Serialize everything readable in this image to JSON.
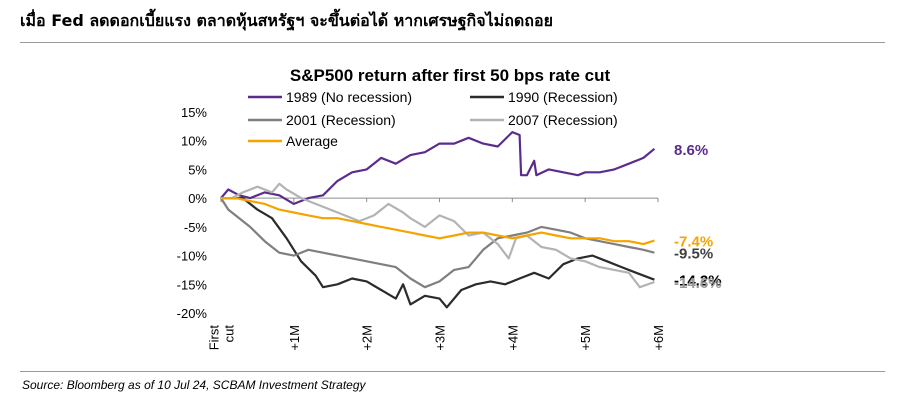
{
  "header": {
    "title": "เมื่อ Fed ลดดอกเบี้ยแรง ตลาดหุ้นสหรัฐฯ จะขึ้นต่อได้ หากเศรษฐกิจไม่ถดถอย"
  },
  "footer": {
    "source": "Source: Bloomberg as of 10 Jul 24, SCBAM Investment Strategy"
  },
  "chart_data": {
    "type": "line",
    "title": "S&P500 return after first 50 bps rate cut",
    "xlabel": "",
    "ylabel": "",
    "x_tick_labels": [
      "First cut",
      "+1M",
      "+2M",
      "+3M",
      "+4M",
      "+5M",
      "+6M"
    ],
    "x_ticks_months": [
      0,
      1,
      2,
      3,
      4,
      5,
      6
    ],
    "xlim_months": [
      0,
      6
    ],
    "ylim_percent": [
      -20,
      15
    ],
    "y_ticks_percent": [
      -20,
      -15,
      -10,
      -5,
      0,
      5,
      10,
      15
    ],
    "y_tick_labels": [
      "-20%",
      "-15%",
      "-10%",
      "-5%",
      "0%",
      "5%",
      "10%",
      "15%"
    ],
    "grid": false,
    "legend_position": "top",
    "series": [
      {
        "name": "1989 (No recession)",
        "color": "#5b2c8c",
        "label_color": "#5b2c8c",
        "end_label": "8.6%",
        "months": [
          0,
          0.1,
          0.25,
          0.4,
          0.6,
          0.8,
          1.0,
          1.2,
          1.4,
          1.6,
          1.8,
          2.0,
          2.2,
          2.4,
          2.6,
          2.8,
          3.0,
          3.2,
          3.4,
          3.6,
          3.8,
          4.0,
          4.1,
          4.12,
          4.2,
          4.3,
          4.33,
          4.5,
          4.7,
          4.9,
          5.0,
          5.2,
          5.4,
          5.6,
          5.8,
          5.95
        ],
        "values": [
          0,
          1.5,
          0.5,
          0,
          1.0,
          0.5,
          -1.0,
          0,
          0.5,
          3.0,
          4.5,
          5.0,
          7.0,
          6.0,
          7.5,
          8.0,
          9.5,
          9.5,
          10.5,
          9.5,
          9.0,
          11.5,
          11.0,
          4.0,
          4.0,
          6.5,
          4.0,
          5.0,
          4.5,
          4.0,
          4.5,
          4.5,
          5.0,
          6.0,
          7.0,
          8.6
        ]
      },
      {
        "name": "1990 (Recession)",
        "color": "#2b2b2b",
        "label_color": "#000000",
        "end_label": "-14.2%",
        "months": [
          0,
          0.15,
          0.3,
          0.5,
          0.7,
          0.9,
          1.1,
          1.3,
          1.4,
          1.6,
          1.8,
          2.0,
          2.2,
          2.4,
          2.5,
          2.6,
          2.8,
          3.0,
          3.1,
          3.3,
          3.5,
          3.7,
          3.9,
          4.1,
          4.3,
          4.5,
          4.7,
          4.9,
          5.1,
          5.3,
          5.5,
          5.7,
          5.95
        ],
        "values": [
          0,
          0,
          0,
          -2.0,
          -3.5,
          -7.0,
          -11.0,
          -13.5,
          -15.5,
          -15.0,
          -14.0,
          -14.5,
          -16.0,
          -17.5,
          -15.0,
          -18.5,
          -17.0,
          -17.5,
          -19.0,
          -16.0,
          -15.0,
          -14.5,
          -15.0,
          -14.0,
          -13.0,
          -14.0,
          -11.5,
          -10.5,
          -10.0,
          -11.0,
          -12.0,
          -13.0,
          -14.2
        ]
      },
      {
        "name": "2001 (Recession)",
        "color": "#7f7f7f",
        "label_color": "#404040",
        "end_label": "-9.5%",
        "months": [
          0,
          0.1,
          0.2,
          0.4,
          0.6,
          0.8,
          1.0,
          1.2,
          1.4,
          1.6,
          1.8,
          2.0,
          2.2,
          2.4,
          2.6,
          2.8,
          3.0,
          3.2,
          3.4,
          3.6,
          3.8,
          4.0,
          4.2,
          4.4,
          4.6,
          4.8,
          5.0,
          5.2,
          5.4,
          5.6,
          5.8,
          5.95
        ],
        "values": [
          0,
          -2.0,
          -3.0,
          -5.0,
          -7.5,
          -9.5,
          -10.0,
          -9.0,
          -9.5,
          -10.0,
          -10.5,
          -11.0,
          -11.5,
          -12.0,
          -14.0,
          -15.5,
          -14.5,
          -12.5,
          -12.0,
          -9.0,
          -7.0,
          -6.5,
          -6.0,
          -5.0,
          -5.5,
          -6.0,
          -7.0,
          -7.5,
          -8.0,
          -8.5,
          -9.0,
          -9.5
        ]
      },
      {
        "name": "2007 (Recession)",
        "color": "#b3b3b3",
        "label_color": "#9a9a9a",
        "end_label": "-14.6%",
        "months": [
          0,
          0.15,
          0.3,
          0.5,
          0.7,
          0.8,
          0.9,
          1.1,
          1.3,
          1.5,
          1.7,
          1.9,
          2.1,
          2.3,
          2.5,
          2.6,
          2.8,
          3.0,
          3.2,
          3.4,
          3.6,
          3.8,
          3.95,
          4.05,
          4.2,
          4.4,
          4.6,
          4.8,
          5.0,
          5.2,
          5.4,
          5.6,
          5.75,
          5.95
        ],
        "values": [
          0,
          0,
          1.0,
          2.0,
          1.0,
          2.5,
          1.5,
          0,
          -1.0,
          -2.0,
          -3.0,
          -4.0,
          -3.0,
          -1.0,
          -2.5,
          -3.5,
          -5.0,
          -3.0,
          -4.0,
          -6.5,
          -6.0,
          -8.0,
          -10.5,
          -7.0,
          -6.5,
          -8.5,
          -9.0,
          -10.5,
          -11.0,
          -12.0,
          -12.5,
          -13.0,
          -15.5,
          -14.6
        ]
      },
      {
        "name": "Average",
        "color": "#f5a300",
        "label_color": "#f5a300",
        "end_label": "-7.4%",
        "months": [
          0,
          0.2,
          0.4,
          0.6,
          0.8,
          1.0,
          1.2,
          1.4,
          1.6,
          1.8,
          2.0,
          2.2,
          2.4,
          2.6,
          2.8,
          3.0,
          3.2,
          3.4,
          3.6,
          3.8,
          4.0,
          4.2,
          4.4,
          4.6,
          4.8,
          5.0,
          5.2,
          5.4,
          5.6,
          5.8,
          5.95
        ],
        "values": [
          0,
          0,
          -0.5,
          -1.0,
          -2.0,
          -2.5,
          -3.0,
          -3.5,
          -3.5,
          -4.0,
          -4.5,
          -5.0,
          -5.5,
          -6.0,
          -6.5,
          -7.0,
          -6.5,
          -6.0,
          -6.0,
          -6.5,
          -7.0,
          -6.5,
          -6.0,
          -6.5,
          -7.0,
          -7.0,
          -7.0,
          -7.5,
          -7.5,
          -8.0,
          -7.4
        ]
      }
    ]
  }
}
